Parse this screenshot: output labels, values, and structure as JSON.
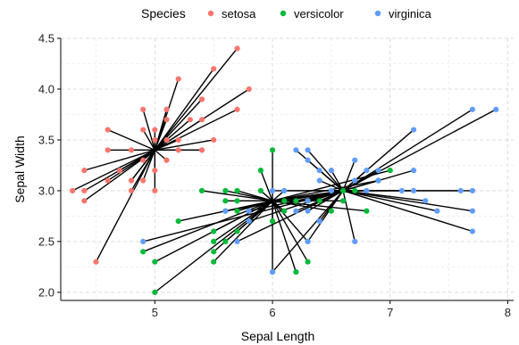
{
  "chart_data": {
    "type": "scatter",
    "xlabel": "Sepal Length",
    "ylabel": "Sepal Width",
    "xlim": [
      4.2,
      8.05
    ],
    "ylim": [
      1.92,
      4.5
    ],
    "x_ticks": [
      5,
      6,
      7,
      8
    ],
    "y_ticks": [
      2.0,
      2.5,
      3.0,
      3.5,
      4.0,
      4.5
    ],
    "x_tick_labels": [
      "5",
      "6",
      "7",
      "8"
    ],
    "y_tick_labels": [
      "2.0",
      "2.5",
      "3.0",
      "3.5",
      "4.0",
      "4.5"
    ],
    "grid": true,
    "legend": {
      "title": "Species",
      "position": "top",
      "entries": [
        {
          "label": "setosa",
          "color": "#F8766D"
        },
        {
          "label": "versicolor",
          "color": "#00BA38"
        },
        {
          "label": "virginica",
          "color": "#619CFF"
        }
      ]
    },
    "centroids": {
      "setosa": [
        5.0,
        3.4
      ],
      "versicolor": [
        6.0,
        2.9
      ],
      "virginica": [
        6.6,
        3.0
      ]
    },
    "series": [
      {
        "name": "setosa",
        "color": "#F8766D",
        "points": [
          [
            5.7,
            4.4
          ],
          [
            5.8,
            4.0
          ],
          [
            5.2,
            4.1
          ],
          [
            5.5,
            4.2
          ],
          [
            5.7,
            3.8
          ],
          [
            5.1,
            3.8
          ],
          [
            4.9,
            3.8
          ],
          [
            5.4,
            3.9
          ],
          [
            5.4,
            3.7
          ],
          [
            5.3,
            3.7
          ],
          [
            5.1,
            3.7
          ],
          [
            5.5,
            3.5
          ],
          [
            5.4,
            3.4
          ],
          [
            5.2,
            3.5
          ],
          [
            5.1,
            3.5
          ],
          [
            4.6,
            3.6
          ],
          [
            5.0,
            3.6
          ],
          [
            4.8,
            3.4
          ],
          [
            4.9,
            3.3
          ],
          [
            5.0,
            3.2
          ],
          [
            5.1,
            3.3
          ],
          [
            4.8,
            3.1
          ],
          [
            5.0,
            3.0
          ],
          [
            4.9,
            3.1
          ],
          [
            4.7,
            3.2
          ],
          [
            4.6,
            3.4
          ],
          [
            4.4,
            3.2
          ],
          [
            4.6,
            3.1
          ],
          [
            4.8,
            3.0
          ],
          [
            4.4,
            3.0
          ],
          [
            4.3,
            3.0
          ],
          [
            4.4,
            2.9
          ],
          [
            5.0,
            3.5
          ],
          [
            4.5,
            2.3
          ],
          [
            5.2,
            3.4
          ],
          [
            5.4,
            3.4
          ],
          [
            4.9,
            3.6
          ],
          [
            4.8,
            3.1
          ]
        ]
      },
      {
        "name": "versicolor",
        "color": "#00BA38",
        "points": [
          [
            6.0,
            3.4
          ],
          [
            5.9,
            3.2
          ],
          [
            5.4,
            3.0
          ],
          [
            5.6,
            3.0
          ],
          [
            5.7,
            3.0
          ],
          [
            5.6,
            2.9
          ],
          [
            5.7,
            2.9
          ],
          [
            5.6,
            2.8
          ],
          [
            5.7,
            2.8
          ],
          [
            5.8,
            2.7
          ],
          [
            5.5,
            2.6
          ],
          [
            5.6,
            2.5
          ],
          [
            5.5,
            2.5
          ],
          [
            5.7,
            2.6
          ],
          [
            5.2,
            2.7
          ],
          [
            5.5,
            2.4
          ],
          [
            5.0,
            2.3
          ],
          [
            5.5,
            2.3
          ],
          [
            4.9,
            2.4
          ],
          [
            5.0,
            2.0
          ],
          [
            6.0,
            2.2
          ],
          [
            6.2,
            2.2
          ],
          [
            6.3,
            2.3
          ],
          [
            6.1,
            2.8
          ],
          [
            6.2,
            2.9
          ],
          [
            6.1,
            3.0
          ],
          [
            6.3,
            2.9
          ],
          [
            6.5,
            2.8
          ],
          [
            6.6,
            2.9
          ],
          [
            6.7,
            3.0
          ],
          [
            6.8,
            2.8
          ],
          [
            6.9,
            3.1
          ],
          [
            7.0,
            3.2
          ],
          [
            6.6,
            3.0
          ],
          [
            6.4,
            2.9
          ],
          [
            6.3,
            2.5
          ],
          [
            6.0,
            2.7
          ],
          [
            5.8,
            2.7
          ],
          [
            6.1,
            2.9
          ],
          [
            5.9,
            3.0
          ]
        ]
      },
      {
        "name": "virginica",
        "color": "#619CFF",
        "points": [
          [
            7.7,
            3.8
          ],
          [
            7.9,
            3.8
          ],
          [
            7.2,
            3.6
          ],
          [
            6.2,
            3.4
          ],
          [
            6.3,
            3.4
          ],
          [
            6.4,
            3.2
          ],
          [
            6.5,
            3.2
          ],
          [
            6.4,
            3.1
          ],
          [
            6.7,
            3.3
          ],
          [
            6.9,
            3.2
          ],
          [
            6.8,
            3.2
          ],
          [
            7.1,
            3.0
          ],
          [
            7.2,
            3.2
          ],
          [
            7.3,
            2.9
          ],
          [
            7.2,
            3.0
          ],
          [
            7.7,
            3.0
          ],
          [
            7.6,
            3.0
          ],
          [
            7.4,
            2.8
          ],
          [
            7.7,
            2.8
          ],
          [
            7.7,
            2.6
          ],
          [
            6.7,
            2.5
          ],
          [
            6.3,
            2.5
          ],
          [
            5.7,
            2.5
          ],
          [
            5.8,
            2.7
          ],
          [
            5.6,
            2.8
          ],
          [
            5.8,
            2.8
          ],
          [
            6.0,
            3.0
          ],
          [
            6.3,
            2.8
          ],
          [
            6.4,
            2.7
          ],
          [
            6.5,
            3.0
          ],
          [
            6.7,
            3.1
          ],
          [
            6.9,
            3.1
          ],
          [
            6.8,
            3.0
          ],
          [
            6.2,
            2.8
          ],
          [
            6.1,
            3.0
          ],
          [
            6.0,
            2.2
          ],
          [
            4.9,
            2.5
          ],
          [
            6.3,
            3.3
          ],
          [
            6.5,
            3.0
          ],
          [
            6.3,
            2.9
          ]
        ]
      }
    ]
  }
}
